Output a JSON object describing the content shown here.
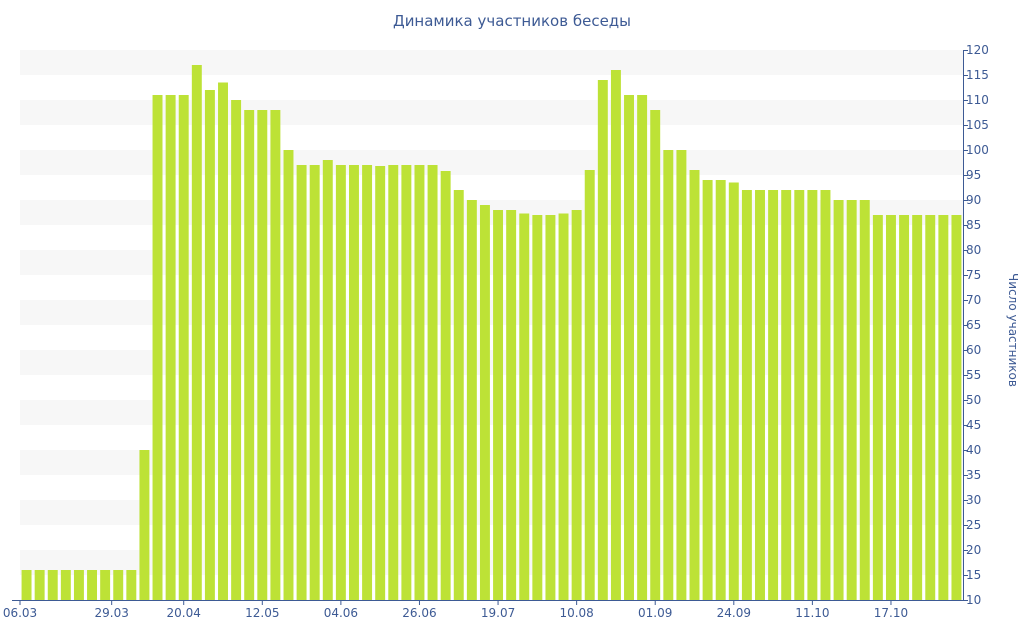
{
  "chart_data": {
    "type": "bar",
    "title": "Динамика участников беседы",
    "ylabel": "Число участников",
    "xlabel": "",
    "ylim": [
      10,
      120
    ],
    "y_axis_side": "right",
    "yticks": [
      10,
      15,
      20,
      25,
      30,
      35,
      40,
      45,
      50,
      55,
      60,
      65,
      70,
      75,
      80,
      85,
      90,
      95,
      100,
      105,
      110,
      115,
      120
    ],
    "xtick_labels": [
      "06.03",
      "29.03",
      "20.04",
      "12.05",
      "04.06",
      "26.06",
      "19.07",
      "10.08",
      "01.09",
      "24.09",
      "11.10",
      "17.10"
    ],
    "xtick_positions": [
      0,
      6.5,
      12,
      18,
      24,
      30,
      36,
      42,
      48,
      54,
      60,
      66
    ],
    "grid": "alternating horizontal bands",
    "colors": {
      "bar": "#bde236",
      "band": "#f7f7f7",
      "axis": "#3d5a94"
    },
    "series": [
      {
        "values": [
          16,
          16,
          16,
          16,
          16,
          16,
          16,
          16,
          16,
          40,
          111,
          111,
          111,
          117,
          112,
          113.5,
          110,
          108,
          108,
          108,
          100,
          97,
          97,
          98,
          97,
          97,
          97,
          96.8,
          97,
          97,
          97,
          97,
          95.8,
          92,
          90,
          89,
          88,
          88,
          87.3,
          87,
          87,
          87.3,
          88,
          96,
          114,
          116,
          111,
          111,
          108,
          100,
          100,
          96,
          94,
          94,
          93.5,
          92,
          92,
          92,
          92,
          92,
          92,
          92,
          90,
          90,
          90,
          87,
          87,
          87,
          87,
          87,
          87,
          87
        ]
      }
    ]
  }
}
